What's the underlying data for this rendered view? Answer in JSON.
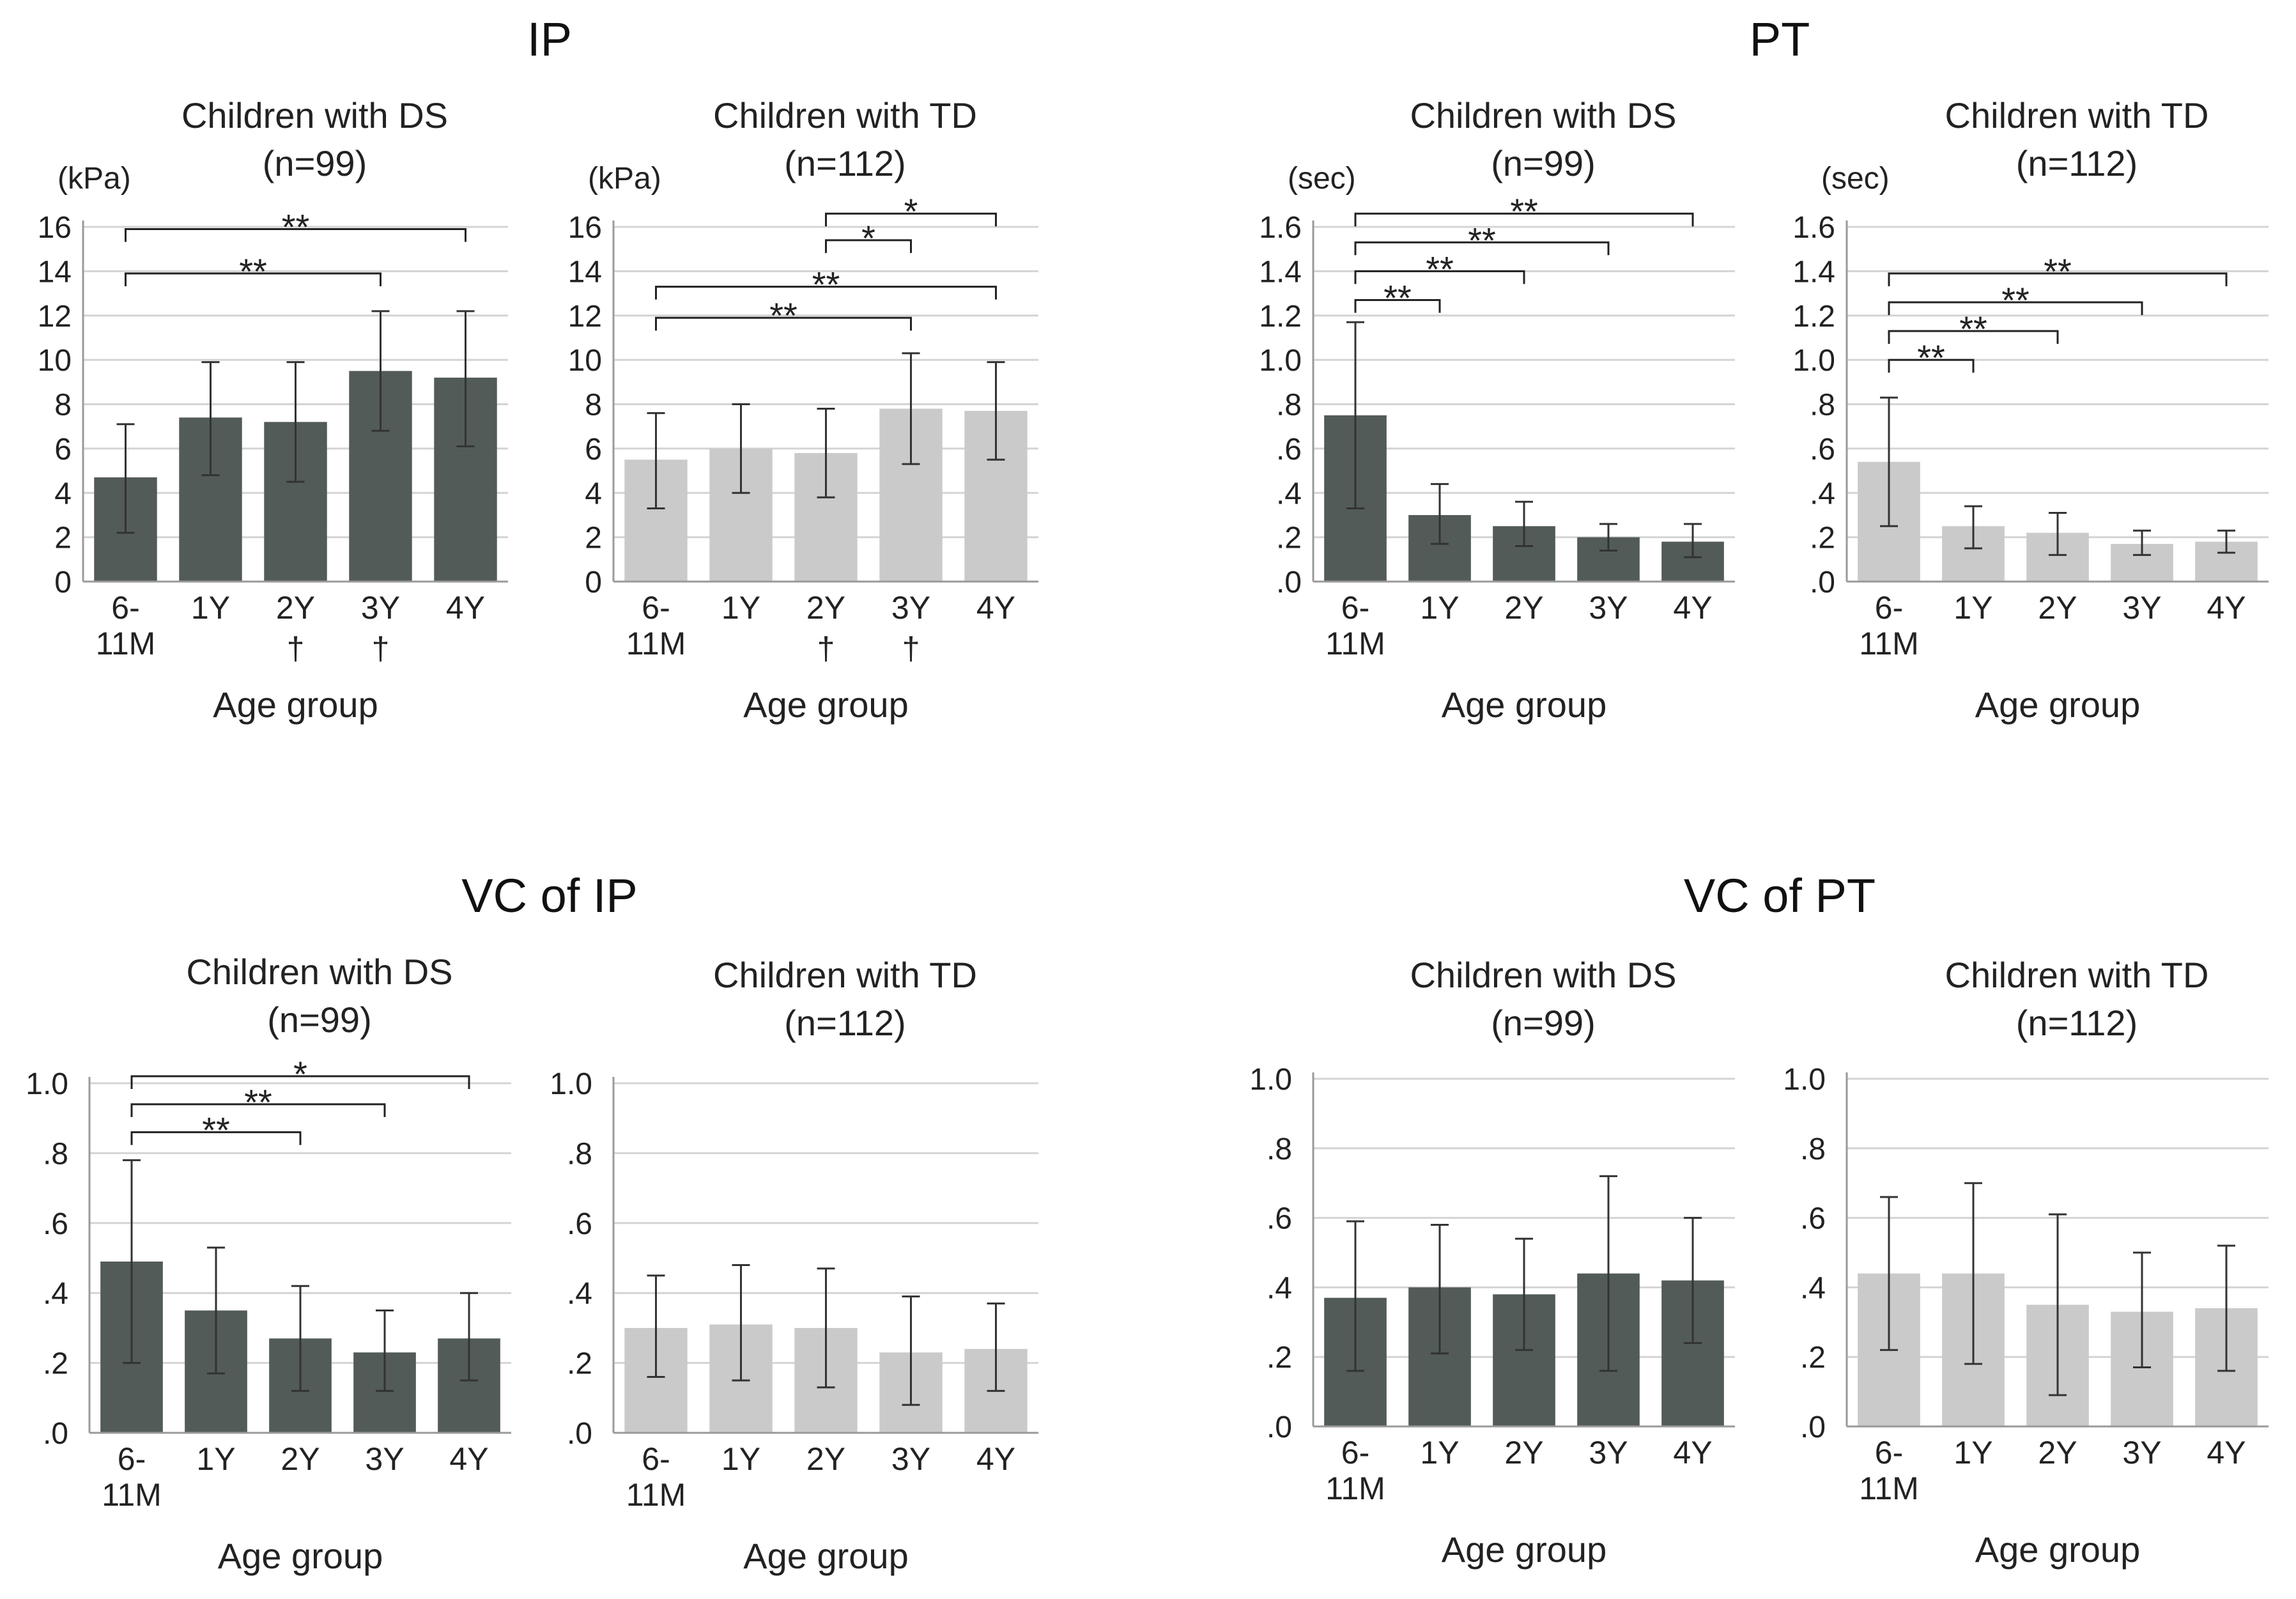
{
  "colors": {
    "ds": "#525b58",
    "td": "#cacaca",
    "grid": "#d4d4d4",
    "err": "#333333"
  },
  "sections": [
    {
      "title": "IP",
      "key": "ip"
    },
    {
      "title": "PT",
      "key": "pt"
    },
    {
      "title": "VC of IP",
      "key": "vcip"
    },
    {
      "title": "VC of PT",
      "key": "vcpt"
    }
  ],
  "chart_data": [
    {
      "id": "ip-ds",
      "type": "bar",
      "section": "IP",
      "group": "ds",
      "title": "Children  with DS",
      "subtitle": "(n=99)",
      "unit": "(kPa)",
      "xlabel": "Age group",
      "categories": [
        "6-\n11M",
        "1Y",
        "2Y",
        "3Y",
        "4Y"
      ],
      "below_marks": [
        "",
        "",
        "†",
        "†",
        ""
      ],
      "values": [
        4.7,
        7.4,
        7.2,
        9.5,
        9.2
      ],
      "err_low": [
        2.2,
        4.8,
        4.5,
        6.8,
        6.1
      ],
      "err_high": [
        7.1,
        9.9,
        9.9,
        12.2,
        12.2
      ],
      "ylim": [
        0,
        16
      ],
      "yticks": [
        [
          0,
          "0"
        ],
        [
          2,
          "2"
        ],
        [
          4,
          "4"
        ],
        [
          6,
          "6"
        ],
        [
          8,
          "8"
        ],
        [
          10,
          "10"
        ],
        [
          12,
          "12"
        ],
        [
          14,
          "14"
        ],
        [
          16,
          "16"
        ]
      ],
      "brackets": [
        {
          "from": 0,
          "to": 4,
          "level": 15.9,
          "label": "**"
        },
        {
          "from": 0,
          "to": 3,
          "level": 13.9,
          "label": "**"
        }
      ]
    },
    {
      "id": "ip-td",
      "type": "bar",
      "section": "IP",
      "group": "td",
      "title": "Children  with TD",
      "subtitle": "(n=112)",
      "unit": "(kPa)",
      "xlabel": "Age group",
      "categories": [
        "6-\n11M",
        "1Y",
        "2Y",
        "3Y",
        "4Y"
      ],
      "below_marks": [
        "",
        "",
        "†",
        "†",
        ""
      ],
      "values": [
        5.5,
        6.0,
        5.8,
        7.8,
        7.7
      ],
      "err_low": [
        3.3,
        4.0,
        3.8,
        5.3,
        5.5
      ],
      "err_high": [
        7.6,
        8.0,
        7.8,
        10.3,
        9.9
      ],
      "ylim": [
        0,
        16
      ],
      "yticks": [
        [
          0,
          "0"
        ],
        [
          2,
          "2"
        ],
        [
          4,
          "4"
        ],
        [
          6,
          "6"
        ],
        [
          8,
          "8"
        ],
        [
          10,
          "10"
        ],
        [
          12,
          "12"
        ],
        [
          14,
          "14"
        ],
        [
          16,
          "16"
        ]
      ],
      "brackets": [
        {
          "from": 2,
          "to": 4,
          "level": 16.6,
          "label": "*"
        },
        {
          "from": 2,
          "to": 3,
          "level": 15.4,
          "label": "*"
        },
        {
          "from": 0,
          "to": 4,
          "level": 13.3,
          "label": "**"
        },
        {
          "from": 0,
          "to": 3,
          "level": 11.9,
          "label": "**"
        }
      ]
    },
    {
      "id": "pt-ds",
      "type": "bar",
      "section": "PT",
      "group": "ds",
      "title": "Children  with DS",
      "subtitle": "(n=99)",
      "unit": "(sec)",
      "xlabel": "Age group",
      "categories": [
        "6-\n11M",
        "1Y",
        "2Y",
        "3Y",
        "4Y"
      ],
      "below_marks": [
        "",
        "",
        "",
        "",
        ""
      ],
      "values": [
        0.75,
        0.3,
        0.25,
        0.2,
        0.18
      ],
      "err_low": [
        0.33,
        0.17,
        0.16,
        0.14,
        0.11
      ],
      "err_high": [
        1.17,
        0.44,
        0.36,
        0.26,
        0.26
      ],
      "ylim": [
        0,
        1.6
      ],
      "yticks": [
        [
          0,
          ".0"
        ],
        [
          0.2,
          ".2"
        ],
        [
          0.4,
          ".4"
        ],
        [
          0.6,
          ".6"
        ],
        [
          0.8,
          ".8"
        ],
        [
          1.0,
          "1.0"
        ],
        [
          1.2,
          "1.2"
        ],
        [
          1.4,
          "1.4"
        ],
        [
          1.6,
          "1.6"
        ]
      ],
      "brackets": [
        {
          "from": 0,
          "to": 4,
          "level": 1.66,
          "label": "**"
        },
        {
          "from": 0,
          "to": 3,
          "level": 1.53,
          "label": "**"
        },
        {
          "from": 0,
          "to": 2,
          "level": 1.4,
          "label": "**"
        },
        {
          "from": 0,
          "to": 1,
          "level": 1.27,
          "label": "**"
        }
      ]
    },
    {
      "id": "pt-td",
      "type": "bar",
      "section": "PT",
      "group": "td",
      "title": "Children  with TD",
      "subtitle": "(n=112)",
      "unit": "(sec)",
      "xlabel": "Age group",
      "categories": [
        "6-\n11M",
        "1Y",
        "2Y",
        "3Y",
        "4Y"
      ],
      "below_marks": [
        "",
        "",
        "",
        "",
        ""
      ],
      "values": [
        0.54,
        0.25,
        0.22,
        0.17,
        0.18
      ],
      "err_low": [
        0.25,
        0.15,
        0.12,
        0.12,
        0.13
      ],
      "err_high": [
        0.83,
        0.34,
        0.31,
        0.23,
        0.23
      ],
      "ylim": [
        0,
        1.6
      ],
      "yticks": [
        [
          0,
          ".0"
        ],
        [
          0.2,
          ".2"
        ],
        [
          0.4,
          ".4"
        ],
        [
          0.6,
          ".6"
        ],
        [
          0.8,
          ".8"
        ],
        [
          1.0,
          "1.0"
        ],
        [
          1.2,
          "1.2"
        ],
        [
          1.4,
          "1.4"
        ],
        [
          1.6,
          "1.6"
        ]
      ],
      "brackets": [
        {
          "from": 0,
          "to": 4,
          "level": 1.39,
          "label": "**"
        },
        {
          "from": 0,
          "to": 3,
          "level": 1.26,
          "label": "**"
        },
        {
          "from": 0,
          "to": 2,
          "level": 1.13,
          "label": "**"
        },
        {
          "from": 0,
          "to": 1,
          "level": 1.0,
          "label": "**"
        }
      ]
    },
    {
      "id": "vcip-ds",
      "type": "bar",
      "section": "VC of IP",
      "group": "ds",
      "title": "Children  with DS",
      "subtitle": "(n=99)",
      "unit": "",
      "xlabel": "Age group",
      "categories": [
        "6-\n11M",
        "1Y",
        "2Y",
        "3Y",
        "4Y"
      ],
      "below_marks": [
        "",
        "",
        "",
        "",
        ""
      ],
      "values": [
        0.49,
        0.35,
        0.27,
        0.23,
        0.27
      ],
      "err_low": [
        0.2,
        0.17,
        0.12,
        0.12,
        0.15
      ],
      "err_high": [
        0.78,
        0.53,
        0.42,
        0.35,
        0.4
      ],
      "ylim": [
        0,
        1.0
      ],
      "yticks": [
        [
          0,
          ".0"
        ],
        [
          0.2,
          ".2"
        ],
        [
          0.4,
          ".4"
        ],
        [
          0.6,
          ".6"
        ],
        [
          0.8,
          ".8"
        ],
        [
          1.0,
          "1.0"
        ]
      ],
      "brackets": [
        {
          "from": 0,
          "to": 4,
          "level": 1.02,
          "label": "*"
        },
        {
          "from": 0,
          "to": 3,
          "level": 0.94,
          "label": "**"
        },
        {
          "from": 0,
          "to": 2,
          "level": 0.86,
          "label": "**"
        }
      ]
    },
    {
      "id": "vcip-td",
      "type": "bar",
      "section": "VC of IP",
      "group": "td",
      "title": "Children  with TD",
      "subtitle": "(n=112)",
      "unit": "",
      "xlabel": "Age group",
      "categories": [
        "6-\n11M",
        "1Y",
        "2Y",
        "3Y",
        "4Y"
      ],
      "below_marks": [
        "",
        "",
        "",
        "",
        ""
      ],
      "values": [
        0.3,
        0.31,
        0.3,
        0.23,
        0.24
      ],
      "err_low": [
        0.16,
        0.15,
        0.13,
        0.08,
        0.12
      ],
      "err_high": [
        0.45,
        0.48,
        0.47,
        0.39,
        0.37
      ],
      "ylim": [
        0,
        1.0
      ],
      "yticks": [
        [
          0,
          ".0"
        ],
        [
          0.2,
          ".2"
        ],
        [
          0.4,
          ".4"
        ],
        [
          0.6,
          ".6"
        ],
        [
          0.8,
          ".8"
        ],
        [
          1.0,
          "1.0"
        ]
      ],
      "brackets": []
    },
    {
      "id": "vcpt-ds",
      "type": "bar",
      "section": "VC of PT",
      "group": "ds",
      "title": "Children  with DS",
      "subtitle": "(n=99)",
      "unit": "",
      "xlabel": "Age group",
      "categories": [
        "6-\n11M",
        "1Y",
        "2Y",
        "3Y",
        "4Y"
      ],
      "below_marks": [
        "",
        "",
        "",
        "",
        ""
      ],
      "values": [
        0.37,
        0.4,
        0.38,
        0.44,
        0.42
      ],
      "err_low": [
        0.16,
        0.21,
        0.22,
        0.16,
        0.24
      ],
      "err_high": [
        0.59,
        0.58,
        0.54,
        0.72,
        0.6
      ],
      "ylim": [
        0,
        1.0
      ],
      "yticks": [
        [
          0,
          ".0"
        ],
        [
          0.2,
          ".2"
        ],
        [
          0.4,
          ".4"
        ],
        [
          0.6,
          ".6"
        ],
        [
          0.8,
          ".8"
        ],
        [
          1.0,
          "1.0"
        ]
      ],
      "brackets": []
    },
    {
      "id": "vcpt-td",
      "type": "bar",
      "section": "VC of PT",
      "group": "td",
      "title": "Children  with TD",
      "subtitle": "(n=112)",
      "unit": "",
      "xlabel": "Age group",
      "categories": [
        "6-\n11M",
        "1Y",
        "2Y",
        "3Y",
        "4Y"
      ],
      "below_marks": [
        "",
        "",
        "",
        "",
        ""
      ],
      "values": [
        0.44,
        0.44,
        0.35,
        0.33,
        0.34
      ],
      "err_low": [
        0.22,
        0.18,
        0.09,
        0.17,
        0.16
      ],
      "err_high": [
        0.66,
        0.7,
        0.61,
        0.5,
        0.52
      ],
      "ylim": [
        0,
        1.0
      ],
      "yticks": [
        [
          0,
          ".0"
        ],
        [
          0.2,
          ".2"
        ],
        [
          0.4,
          ".4"
        ],
        [
          0.6,
          ".6"
        ],
        [
          0.8,
          ".8"
        ],
        [
          1.0,
          "1.0"
        ]
      ],
      "brackets": []
    }
  ]
}
